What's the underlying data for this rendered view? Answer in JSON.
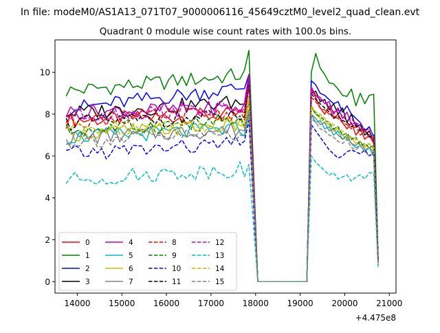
{
  "figure": {
    "suptitle": "In file: modeM0/AS1A13_071T07_9000006116_45649cztM0_level2_quad_clean.evt"
  },
  "chart_data": {
    "type": "line",
    "title": "Quadrant 0 module wise count rates with 100.0s bins.",
    "xlabel": "",
    "ylabel": "",
    "x_offset_label": "+4.475e8",
    "xlim": [
      13500,
      21150
    ],
    "ylim": [
      -0.55,
      11.55
    ],
    "x_ticks": [
      14000,
      15000,
      16000,
      17000,
      18000,
      19000,
      20000,
      21000
    ],
    "x_tick_labels": [
      "14000",
      "15000",
      "16000",
      "17000",
      "18000",
      "19000",
      "20000",
      "21000"
    ],
    "y_ticks": [
      0,
      2,
      4,
      6,
      8,
      10
    ],
    "y_tick_labels": [
      "0",
      "2",
      "4",
      "6",
      "8",
      "10"
    ],
    "grid": false,
    "legend": {
      "placement": "lower-left",
      "columns": 4
    },
    "segments": {
      "seg1": {
        "x_start": 13750,
        "step": 100,
        "count": 42
      },
      "gap": {
        "x": [
          18050,
          19150
        ],
        "y": [
          0,
          0
        ]
      },
      "seg2": {
        "x_start": 19250,
        "step": 100,
        "count": 16
      }
    },
    "series": [
      {
        "name": "0",
        "color": "#ff0000",
        "dash": "solid",
        "s1_base": 7.7,
        "s1_end": 8.0,
        "s1_peak": 9.6,
        "s2": [
          9.2,
          8.8,
          8.3,
          8.0,
          8.4,
          7.8,
          8.0,
          7.6,
          7.3,
          7.6,
          7.0,
          7.3,
          6.8,
          7.0,
          6.6,
          1.1
        ]
      },
      {
        "name": "1",
        "color": "#008000",
        "dash": "solid",
        "s1_base": 9.1,
        "s1_end": 9.9,
        "s1_peak": 11.05,
        "s2": [
          10.0,
          10.9,
          10.2,
          9.9,
          9.5,
          9.45,
          9.2,
          8.9,
          8.85,
          9.2,
          8.4,
          9.0,
          8.5,
          8.9,
          8.95,
          1.1
        ]
      },
      {
        "name": "2",
        "color": "#0000ff",
        "dash": "solid",
        "s1_base": 8.25,
        "s1_end": 9.3,
        "s1_peak": 9.9,
        "s2": [
          9.6,
          9.4,
          9.0,
          8.9,
          8.7,
          8.5,
          8.6,
          8.1,
          8.4,
          8.0,
          7.8,
          7.6,
          7.2,
          7.4,
          6.9,
          1.0
        ]
      },
      {
        "name": "3",
        "color": "#000000",
        "dash": "solid",
        "s1_base": 8.05,
        "s1_end": 8.6,
        "s1_peak": 9.6,
        "s2": [
          9.0,
          9.1,
          8.6,
          8.7,
          8.2,
          8.5,
          8.0,
          8.3,
          7.6,
          8.0,
          7.4,
          7.5,
          7.0,
          7.2,
          6.7,
          1.0
        ]
      },
      {
        "name": "4",
        "color": "#bf00bf",
        "dash": "solid",
        "s1_base": 8.1,
        "s1_end": 8.3,
        "s1_peak": 9.9,
        "s2": [
          9.3,
          8.9,
          8.8,
          8.5,
          8.6,
          8.0,
          8.3,
          7.8,
          8.1,
          7.5,
          7.6,
          7.3,
          7.2,
          7.0,
          6.8,
          1.0
        ]
      },
      {
        "name": "5",
        "color": "#00bfbf",
        "dash": "solid",
        "s1_base": 6.9,
        "s1_end": 7.3,
        "s1_peak": 8.0,
        "s2": [
          8.0,
          7.6,
          7.7,
          7.3,
          7.4,
          7.0,
          7.2,
          6.8,
          6.9,
          6.6,
          6.4,
          6.5,
          6.2,
          6.4,
          6.0,
          0.9
        ]
      },
      {
        "name": "6",
        "color": "#bfbf00",
        "dash": "solid",
        "s1_base": 7.05,
        "s1_end": 7.5,
        "s1_peak": 8.6,
        "s2": [
          8.3,
          8.0,
          7.8,
          7.6,
          7.5,
          7.2,
          7.3,
          7.0,
          6.8,
          6.9,
          6.6,
          6.7,
          6.4,
          6.6,
          6.3,
          0.9
        ]
      },
      {
        "name": "7",
        "color": "#808080",
        "dash": "solid",
        "s1_base": 6.85,
        "s1_end": 7.3,
        "s1_peak": 8.2,
        "s2": [
          8.0,
          7.8,
          7.5,
          7.6,
          7.2,
          7.3,
          7.0,
          6.8,
          7.0,
          6.6,
          6.5,
          6.7,
          6.3,
          6.4,
          6.2,
          0.9
        ]
      },
      {
        "name": "8",
        "color": "#ff0000",
        "dash": "dashed",
        "s1_base": 7.7,
        "s1_end": 8.1,
        "s1_peak": 9.3,
        "s2": [
          8.8,
          8.6,
          8.3,
          8.2,
          8.0,
          7.9,
          7.8,
          7.6,
          7.5,
          7.3,
          7.4,
          7.0,
          7.2,
          6.9,
          6.8,
          1.0
        ]
      },
      {
        "name": "9",
        "color": "#008000",
        "dash": "dashed",
        "s1_base": 7.2,
        "s1_end": 7.7,
        "s1_peak": 8.8,
        "s2": [
          8.4,
          8.0,
          7.9,
          7.7,
          7.6,
          7.3,
          7.4,
          7.0,
          7.1,
          6.8,
          6.9,
          6.5,
          6.6,
          6.4,
          6.5,
          0.9
        ]
      },
      {
        "name": "10",
        "color": "#0000ff",
        "dash": "dashed",
        "s1_base": 6.1,
        "s1_end": 6.6,
        "s1_peak": 7.7,
        "s2": [
          7.5,
          7.2,
          6.9,
          6.6,
          6.3,
          6.1,
          5.9,
          6.0,
          6.2,
          6.3,
          6.2,
          6.1,
          6.3,
          6.0,
          6.2,
          0.8
        ]
      },
      {
        "name": "11",
        "color": "#000000",
        "dash": "dashed",
        "s1_base": 7.6,
        "s1_end": 7.9,
        "s1_peak": 9.5,
        "s2": [
          9.0,
          8.7,
          8.5,
          8.3,
          8.1,
          7.8,
          7.9,
          7.7,
          7.6,
          7.4,
          7.5,
          7.2,
          7.3,
          6.9,
          7.0,
          1.0
        ]
      },
      {
        "name": "12",
        "color": "#bf00bf",
        "dash": "dashed",
        "s1_base": 7.95,
        "s1_end": 8.3,
        "s1_peak": 9.6,
        "s2": [
          9.2,
          8.9,
          8.7,
          8.6,
          8.4,
          8.1,
          8.2,
          7.9,
          7.7,
          7.8,
          7.5,
          7.6,
          7.2,
          7.3,
          7.0,
          1.0
        ]
      },
      {
        "name": "13",
        "color": "#00bfbf",
        "dash": "dashed",
        "s1_base": 4.85,
        "s1_end": 5.4,
        "s1_peak": 5.6,
        "s2": [
          6.0,
          5.7,
          5.5,
          5.3,
          5.1,
          5.2,
          4.9,
          5.0,
          5.1,
          4.8,
          5.0,
          5.1,
          4.9,
          5.2,
          5.2,
          0.7
        ]
      },
      {
        "name": "14",
        "color": "#bfbf00",
        "dash": "dashed",
        "s1_base": 7.3,
        "s1_end": 7.6,
        "s1_peak": 8.8,
        "s2": [
          8.4,
          8.1,
          8.0,
          7.8,
          7.6,
          7.5,
          7.3,
          7.2,
          7.0,
          6.9,
          6.8,
          6.7,
          6.5,
          6.6,
          6.4,
          0.9
        ]
      },
      {
        "name": "15",
        "color": "#808080",
        "dash": "dashed",
        "s1_base": 6.7,
        "s1_end": 7.1,
        "s1_peak": 8.1,
        "s2": [
          7.8,
          7.6,
          7.3,
          7.2,
          7.0,
          6.9,
          6.7,
          6.6,
          6.8,
          6.4,
          6.3,
          6.5,
          6.2,
          6.0,
          6.1,
          0.9
        ]
      }
    ]
  }
}
